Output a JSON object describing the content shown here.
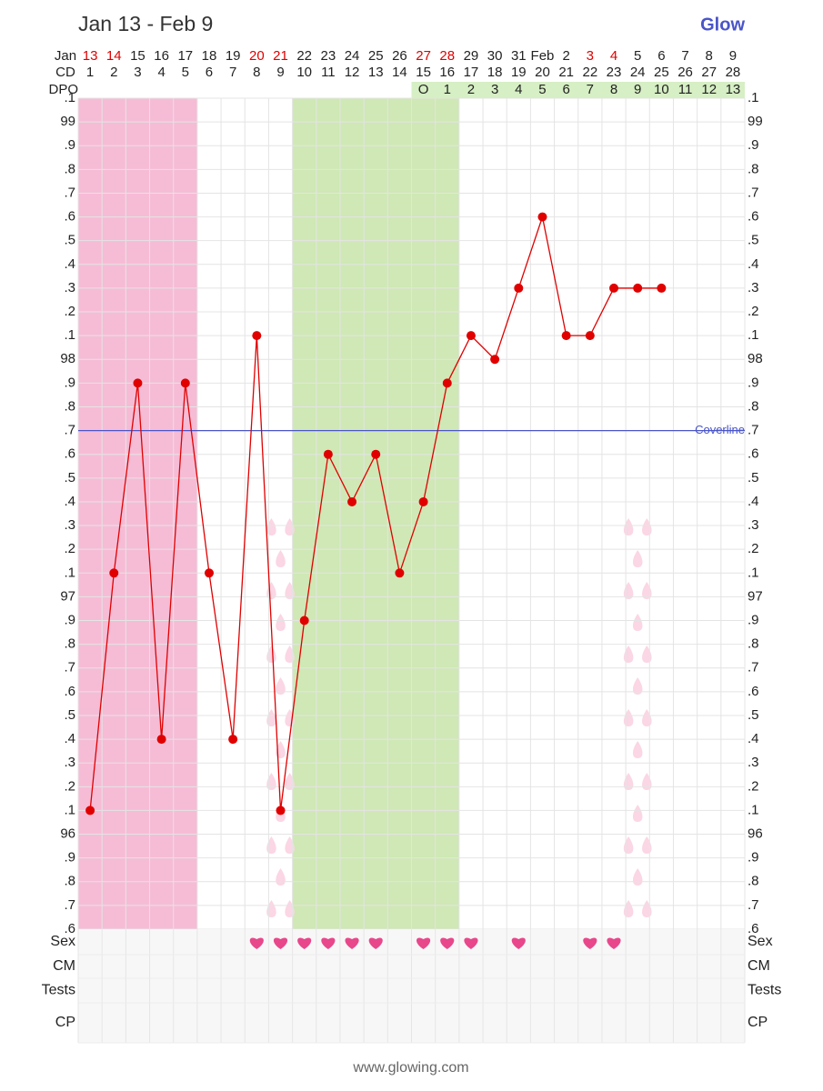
{
  "header": {
    "title": "Jan 13 - Feb 9",
    "logo": "Glow",
    "footer": "www.glowing.com"
  },
  "chart_data": {
    "type": "line",
    "month_label": "Jan",
    "dates": [
      "13",
      "14",
      "15",
      "16",
      "17",
      "18",
      "19",
      "20",
      "21",
      "22",
      "23",
      "24",
      "25",
      "26",
      "27",
      "28",
      "29",
      "30",
      "31",
      "Feb",
      "2",
      "3",
      "4",
      "5",
      "6",
      "7",
      "8",
      "9"
    ],
    "red_dates": [
      0,
      1,
      7,
      8,
      14,
      15,
      21,
      22
    ],
    "date_color": "#e00000",
    "cd_label": "CD",
    "categories": [
      1,
      2,
      3,
      4,
      5,
      6,
      7,
      8,
      9,
      10,
      11,
      12,
      13,
      14,
      15,
      16,
      17,
      18,
      19,
      20,
      21,
      22,
      23,
      24,
      25,
      26,
      27,
      28
    ],
    "dpo_label": "DPO",
    "dpo": [
      null,
      null,
      null,
      null,
      null,
      null,
      null,
      null,
      null,
      null,
      null,
      null,
      null,
      null,
      "O",
      1,
      2,
      3,
      4,
      5,
      6,
      7,
      8,
      9,
      10,
      11,
      12,
      13
    ],
    "dpo_color": "#d6efc4",
    "values": [
      96.1,
      97.1,
      97.9,
      96.4,
      97.9,
      97.1,
      96.4,
      98.1,
      96.1,
      96.9,
      97.6,
      97.4,
      97.6,
      97.1,
      97.4,
      97.9,
      98.1,
      98.0,
      98.3,
      98.6,
      98.1,
      98.1,
      98.3,
      98.3,
      98.3,
      null,
      null,
      null
    ],
    "color": "#e00000",
    "coverline": {
      "value": 97.7,
      "label": "Coverline",
      "color": "#4a55c8"
    },
    "ylim": [
      95.6,
      99.1
    ],
    "yticks": [
      {
        "value": 95.6,
        "label": ".6"
      },
      {
        "value": 95.7,
        "label": ".7"
      },
      {
        "value": 95.8,
        "label": ".8"
      },
      {
        "value": 95.9,
        "label": ".9"
      },
      96,
      {
        "value": 96.1,
        "label": ".1"
      },
      {
        "value": 96.2,
        "label": ".2"
      },
      {
        "value": 96.3,
        "label": ".3"
      },
      {
        "value": 96.4,
        "label": ".4"
      },
      {
        "value": 96.5,
        "label": ".5"
      },
      {
        "value": 96.6,
        "label": ".6"
      },
      {
        "value": 96.7,
        "label": ".7"
      },
      {
        "value": 96.8,
        "label": ".8"
      },
      {
        "value": 96.9,
        "label": ".9"
      },
      97,
      {
        "value": 97.1,
        "label": ".1"
      },
      {
        "value": 97.2,
        "label": ".2"
      },
      {
        "value": 97.3,
        "label": ".3"
      },
      {
        "value": 97.4,
        "label": ".4"
      },
      {
        "value": 97.5,
        "label": ".5"
      },
      {
        "value": 97.6,
        "label": ".6"
      },
      {
        "value": 97.7,
        "label": ".7"
      },
      {
        "value": 97.8,
        "label": ".8"
      },
      {
        "value": 97.9,
        "label": ".9"
      },
      98,
      {
        "value": 98.1,
        "label": ".1"
      },
      {
        "value": 98.2,
        "label": ".2"
      },
      {
        "value": 98.3,
        "label": ".3"
      },
      {
        "value": 98.4,
        "label": ".4"
      },
      {
        "value": 98.5,
        "label": ".5"
      },
      {
        "value": 98.6,
        "label": ".6"
      },
      {
        "value": 98.7,
        "label": ".7"
      },
      {
        "value": 98.8,
        "label": ".8"
      },
      {
        "value": 98.9,
        "label": ".9"
      },
      99,
      {
        "value": 99.1,
        "label": ".1"
      }
    ],
    "grid": true,
    "period_days": [
      1,
      5
    ],
    "period_color": "#f6bcd6",
    "fertile_days": [
      10,
      16
    ],
    "fertile_color": "#cfe8b5",
    "spotting_days": [
      9,
      24
    ],
    "sex_days": [
      8,
      9,
      10,
      11,
      12,
      13,
      15,
      16,
      17,
      19,
      22,
      23
    ],
    "heart_color": "#e8478b",
    "rows": [
      "Sex",
      "CM",
      "Tests",
      "CP"
    ]
  }
}
